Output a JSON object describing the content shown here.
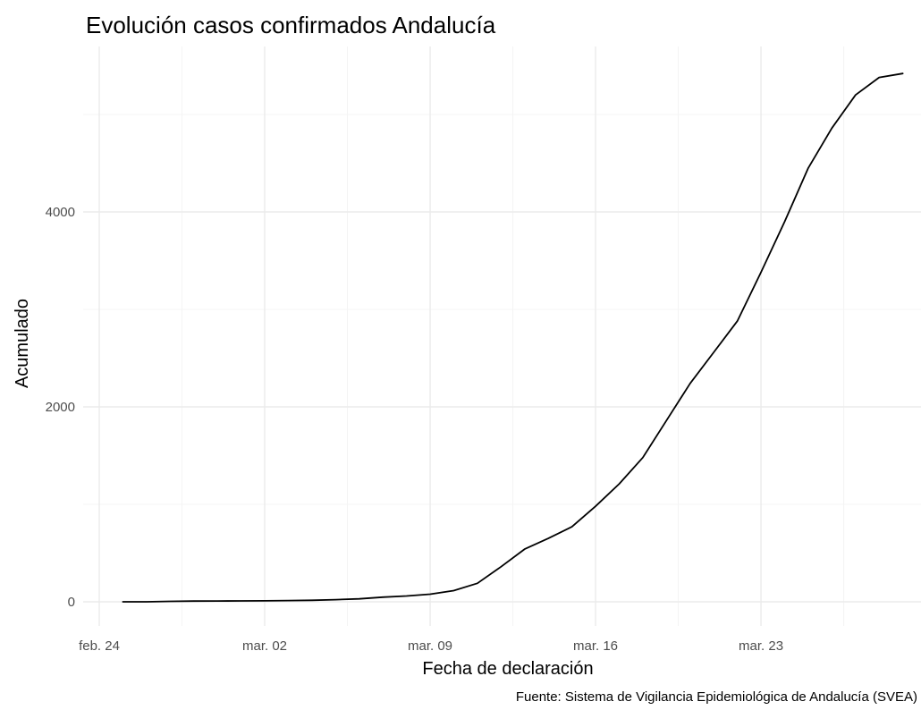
{
  "chart_data": {
    "type": "line",
    "title": "Evolución casos confirmados Andalucía",
    "xlabel": "Fecha de declaración",
    "ylabel": "Acumulado",
    "caption": "Fuente: Sistema de Vigilancia Epidemiológica de Andalucía (SVEA)",
    "x_ticks": [
      {
        "date": "2020-02-24",
        "label": "feb. 24"
      },
      {
        "date": "2020-03-02",
        "label": "mar. 02"
      },
      {
        "date": "2020-03-09",
        "label": "mar. 09"
      },
      {
        "date": "2020-03-16",
        "label": "mar. 16"
      },
      {
        "date": "2020-03-23",
        "label": "mar. 23"
      }
    ],
    "y_ticks": [
      0,
      2000,
      4000
    ],
    "xlim": [
      "2020-02-24",
      "2020-03-29"
    ],
    "ylim": [
      -200,
      5600
    ],
    "grid": true,
    "legend": "none",
    "line_color": "#000000",
    "x": [
      "2020-02-25",
      "2020-02-26",
      "2020-02-27",
      "2020-02-28",
      "2020-02-29",
      "2020-03-01",
      "2020-03-02",
      "2020-03-03",
      "2020-03-04",
      "2020-03-05",
      "2020-03-06",
      "2020-03-07",
      "2020-03-08",
      "2020-03-09",
      "2020-03-10",
      "2020-03-11",
      "2020-03-12",
      "2020-03-13",
      "2020-03-14",
      "2020-03-15",
      "2020-03-16",
      "2020-03-17",
      "2020-03-18",
      "2020-03-19",
      "2020-03-20",
      "2020-03-21",
      "2020-03-22",
      "2020-03-23",
      "2020-03-24",
      "2020-03-25",
      "2020-03-26",
      "2020-03-27",
      "2020-03-28",
      "2020-03-29"
    ],
    "y": [
      0,
      0,
      5,
      7,
      8,
      9,
      10,
      13,
      16,
      22,
      30,
      48,
      60,
      78,
      115,
      190,
      360,
      540,
      650,
      770,
      980,
      1210,
      1480,
      1860,
      2240,
      2560,
      2880,
      3380,
      3900,
      4450,
      4860,
      5200,
      5380,
      5420
    ]
  }
}
